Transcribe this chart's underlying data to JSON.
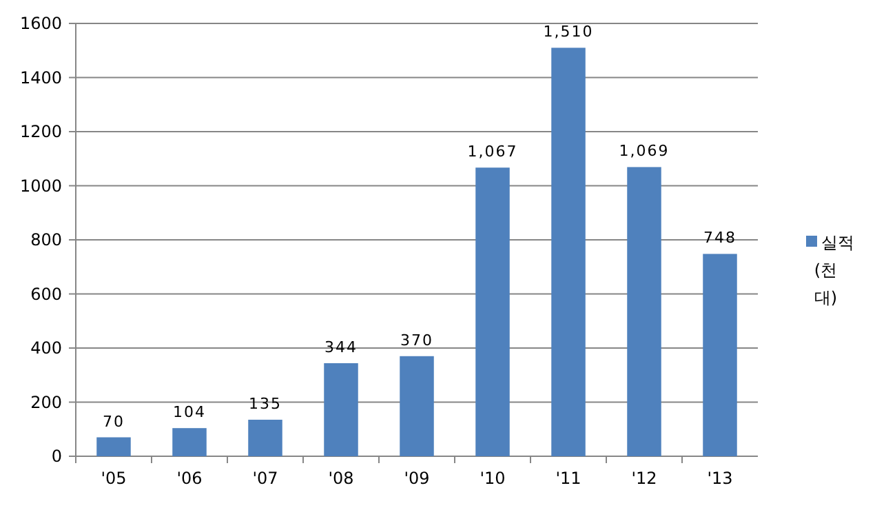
{
  "chart_data": {
    "type": "bar",
    "categories": [
      "'05",
      "'06",
      "'07",
      "'08",
      "'09",
      "'10",
      "'11",
      "'12",
      "'13"
    ],
    "series": [
      {
        "name": "실적 (천 대)",
        "color": "#4f81bd",
        "values": [
          70,
          104,
          135,
          344,
          370,
          1067,
          1510,
          1069,
          748
        ],
        "value_labels": [
          "70",
          "104",
          "135",
          "344",
          "370",
          "1,067",
          "1,510",
          "1,069",
          "748"
        ]
      }
    ],
    "ylim": [
      0,
      1600
    ],
    "yticks": [
      0,
      200,
      400,
      600,
      800,
      1000,
      1200,
      1400,
      1600
    ],
    "grid": "y",
    "legend": "right"
  }
}
